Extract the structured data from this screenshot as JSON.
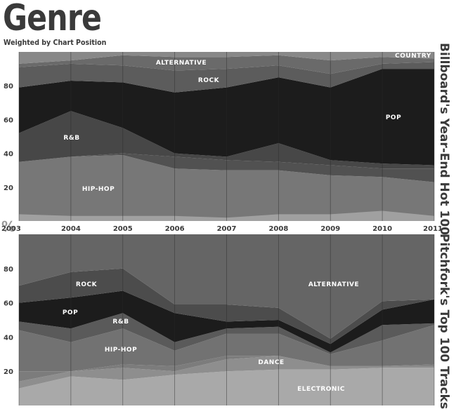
{
  "header": {
    "title": "Genre",
    "subtitle": "Weighted by Chart Position",
    "percent_symbol": "%"
  },
  "colors": {
    "background": "#ffffff",
    "title": "#3a3a3a",
    "label": "#ffffff",
    "axis_text": "#3a3a3a",
    "percent_symbol": "#9a9a9a",
    "grid_line": "#2a2a2a"
  },
  "chart_data": [
    {
      "type": "area",
      "stacked": true,
      "title": "Billboard's Year-End Hot 100",
      "x": [
        "2003",
        "2004",
        "2005",
        "2006",
        "2007",
        "2008",
        "2009",
        "2010",
        "2011"
      ],
      "ylim": [
        0,
        100
      ],
      "yticks": [
        20,
        40,
        60,
        80
      ],
      "grid": true,
      "bottom_band": [
        4,
        3,
        3,
        3,
        2,
        4,
        4,
        6,
        3
      ],
      "layers": [
        {
          "label": "HIP-HOP",
          "color": "#777777",
          "top": [
            35,
            38,
            39,
            31,
            30,
            30,
            27,
            26,
            23
          ]
        },
        {
          "label": "",
          "color": "#515151",
          "top": [
            35,
            38,
            40,
            38,
            36,
            35,
            33,
            31,
            31
          ]
        },
        {
          "label": "R&B",
          "color": "#474747",
          "top": [
            52,
            65,
            55,
            40,
            38,
            46,
            36,
            34,
            33
          ]
        },
        {
          "label": "POP",
          "color": "#1c1c1c",
          "top": [
            79,
            83,
            82,
            76,
            79,
            85,
            79,
            90,
            90
          ]
        },
        {
          "label": "ROCK",
          "color": "#5c5c5c",
          "top": [
            91,
            93,
            92,
            89,
            90,
            92,
            87,
            93,
            94
          ]
        },
        {
          "label": "ALTERNATIVE",
          "color": "#6a6a6a",
          "top": [
            93,
            95,
            98,
            97,
            97,
            98,
            95,
            97,
            96
          ]
        },
        {
          "label": "COUNTRY",
          "color": "#888888",
          "top": [
            100,
            100,
            100,
            100,
            100,
            100,
            100,
            100,
            100
          ]
        }
      ]
    },
    {
      "type": "area",
      "stacked": true,
      "title": "Pitchfork's Top 100 Tracks",
      "x": [
        "2003",
        "2004",
        "2005",
        "2006",
        "2007",
        "2008",
        "2009",
        "2010",
        "2011"
      ],
      "ylim": [
        0,
        100
      ],
      "yticks": [
        20,
        40,
        60,
        80
      ],
      "grid": true,
      "layers": [
        {
          "label": "ELECTRONIC",
          "color": "#a9a9a9",
          "top": [
            10,
            17,
            15,
            18,
            20,
            21,
            21,
            22,
            22
          ]
        },
        {
          "label": "DANCE",
          "color": "#8e8e8e",
          "top": [
            14,
            20,
            22,
            20,
            27,
            29,
            23,
            23,
            23
          ]
        },
        {
          "label": "",
          "color": "#7c7c7c",
          "top": [
            20,
            20,
            24,
            23,
            29,
            29,
            23,
            23,
            24
          ]
        },
        {
          "label": "HIP-HOP",
          "color": "#727272",
          "top": [
            44,
            37,
            45,
            32,
            42,
            42,
            30,
            38,
            47
          ]
        },
        {
          "label": "R&B",
          "color": "#5a5a5a",
          "top": [
            49,
            45,
            54,
            37,
            45,
            46,
            31,
            47,
            48
          ]
        },
        {
          "label": "POP",
          "color": "#1c1c1c",
          "top": [
            60,
            63,
            67,
            54,
            49,
            50,
            36,
            56,
            62
          ]
        },
        {
          "label": "ROCK",
          "color": "#4c4c4c",
          "top": [
            70,
            78,
            80,
            59,
            59,
            57,
            39,
            61,
            62
          ]
        },
        {
          "label": "ALTERNATIVE",
          "color": "#656565",
          "top": [
            100,
            100,
            100,
            100,
            100,
            100,
            100,
            100,
            100
          ]
        }
      ]
    }
  ]
}
